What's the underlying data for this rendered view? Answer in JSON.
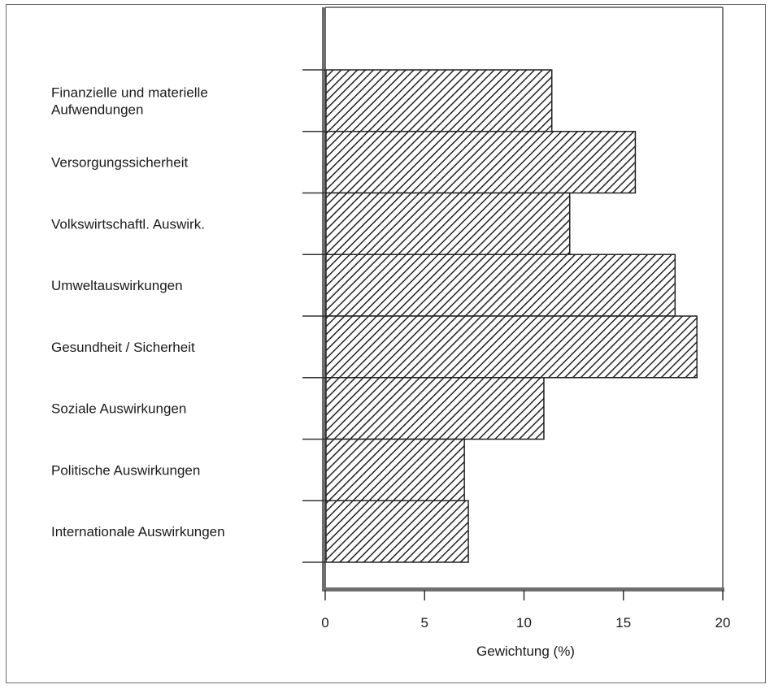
{
  "chart_data": {
    "type": "bar",
    "orientation": "horizontal",
    "categories": [
      "Finanzielle und materielle Aufwendungen",
      "Versorgungssicherheit",
      "Volkswirtschaftl. Auswirk.",
      "Umweltauswirkungen",
      "Gesundheit / Sicherheit",
      "Soziale Auswirkungen",
      "Politische Auswirkungen",
      "Internationale Auswirkungen"
    ],
    "category_lines": [
      [
        "Finanzielle und materielle",
        "Aufwendungen"
      ],
      [
        "Versorgungssicherheit"
      ],
      [
        "Volkswirtschaftl. Auswirk."
      ],
      [
        "Umweltauswirkungen"
      ],
      [
        "Gesundheit / Sicherheit"
      ],
      [
        "Soziale Auswirkungen"
      ],
      [
        "Politische Auswirkungen"
      ],
      [
        "Internationale Auswirkungen"
      ]
    ],
    "values": [
      11.4,
      15.6,
      12.3,
      17.6,
      18.7,
      11.0,
      7.0,
      7.2
    ],
    "xlabel": "Gewichtung (%)",
    "ylabel": "",
    "title": "",
    "xlim": [
      0,
      20
    ],
    "xticks": [
      0,
      5,
      10,
      15,
      20
    ],
    "grid": false,
    "legend": "none",
    "bar_fill": "diagonal-hatch",
    "colors": {
      "bar_stroke": "#222222",
      "hatch": "#222222",
      "axis": "#6e6e6e",
      "frame": "#6a6a6a"
    }
  }
}
